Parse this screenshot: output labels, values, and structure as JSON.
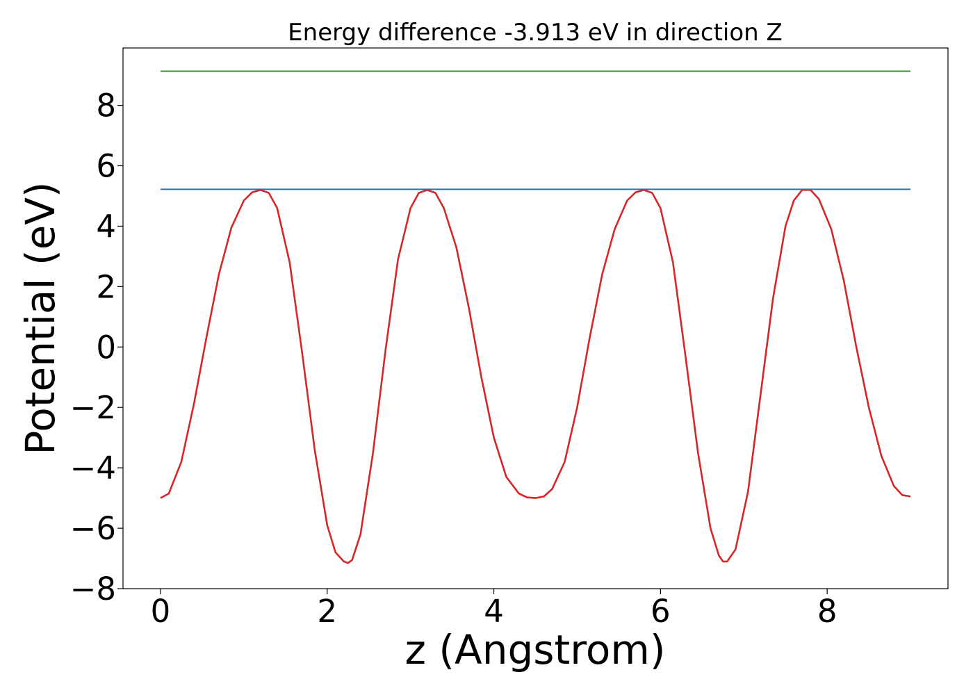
{
  "chart_data": {
    "type": "line",
    "title": "Energy difference -3.913 eV in direction Z",
    "xlabel": "z (Angstrom)",
    "ylabel": "Potential (eV)",
    "xlim": [
      -0.45,
      9.45
    ],
    "ylim": [
      -8,
      9.9
    ],
    "x_ticks": [
      0,
      2,
      4,
      6,
      8
    ],
    "x_tick_labels": [
      "0",
      "2",
      "4",
      "6",
      "8"
    ],
    "y_ticks": [
      -8,
      -6,
      -4,
      -2,
      0,
      2,
      4,
      6,
      8
    ],
    "y_tick_labels": [
      "−8",
      "−6",
      "−4",
      "−2",
      "0",
      "2",
      "4",
      "6",
      "8"
    ],
    "grid": false,
    "series": [
      {
        "color": "#d62728",
        "x": [
          0,
          0.1,
          0.25,
          0.4,
          0.55,
          0.7,
          0.85,
          1.0,
          1.1,
          1.2,
          1.3,
          1.4,
          1.55,
          1.7,
          1.85,
          2.0,
          2.1,
          2.2,
          2.25,
          2.3,
          2.4,
          2.55,
          2.7,
          2.85,
          3.0,
          3.1,
          3.2,
          3.3,
          3.4,
          3.55,
          3.7,
          3.85,
          4.0,
          4.15,
          4.3,
          4.4,
          4.5,
          4.6,
          4.7,
          4.85,
          5.0,
          5.15,
          5.3,
          5.45,
          5.6,
          5.7,
          5.8,
          5.9,
          6.0,
          6.15,
          6.3,
          6.45,
          6.6,
          6.7,
          6.75,
          6.8,
          6.9,
          7.05,
          7.2,
          7.35,
          7.5,
          7.6,
          7.7,
          7.8,
          7.9,
          8.05,
          8.2,
          8.35,
          8.5,
          8.65,
          8.8,
          8.9,
          9.0
        ],
        "y": [
          -5.0,
          -4.85,
          -3.8,
          -1.9,
          0.3,
          2.4,
          3.95,
          4.85,
          5.12,
          5.2,
          5.1,
          4.6,
          2.8,
          -0.2,
          -3.4,
          -5.9,
          -6.8,
          -7.1,
          -7.15,
          -7.05,
          -6.2,
          -3.5,
          -0.1,
          2.9,
          4.6,
          5.1,
          5.2,
          5.1,
          4.6,
          3.3,
          1.3,
          -1.0,
          -3.0,
          -4.3,
          -4.85,
          -4.98,
          -5.0,
          -4.95,
          -4.7,
          -3.8,
          -2.0,
          0.3,
          2.4,
          3.9,
          4.85,
          5.12,
          5.2,
          5.1,
          4.6,
          2.8,
          -0.3,
          -3.5,
          -6.0,
          -6.9,
          -7.1,
          -7.1,
          -6.7,
          -4.8,
          -1.6,
          1.6,
          4.0,
          4.85,
          5.2,
          5.2,
          4.9,
          3.9,
          2.2,
          0.0,
          -2.0,
          -3.6,
          -4.6,
          -4.9,
          -4.95
        ]
      },
      {
        "color": "#1f77b4",
        "x": [
          0,
          9.0
        ],
        "y": [
          5.22,
          5.22
        ]
      },
      {
        "color": "#2ca02c",
        "x": [
          0,
          9.0
        ],
        "y": [
          9.13,
          9.13
        ]
      }
    ]
  }
}
